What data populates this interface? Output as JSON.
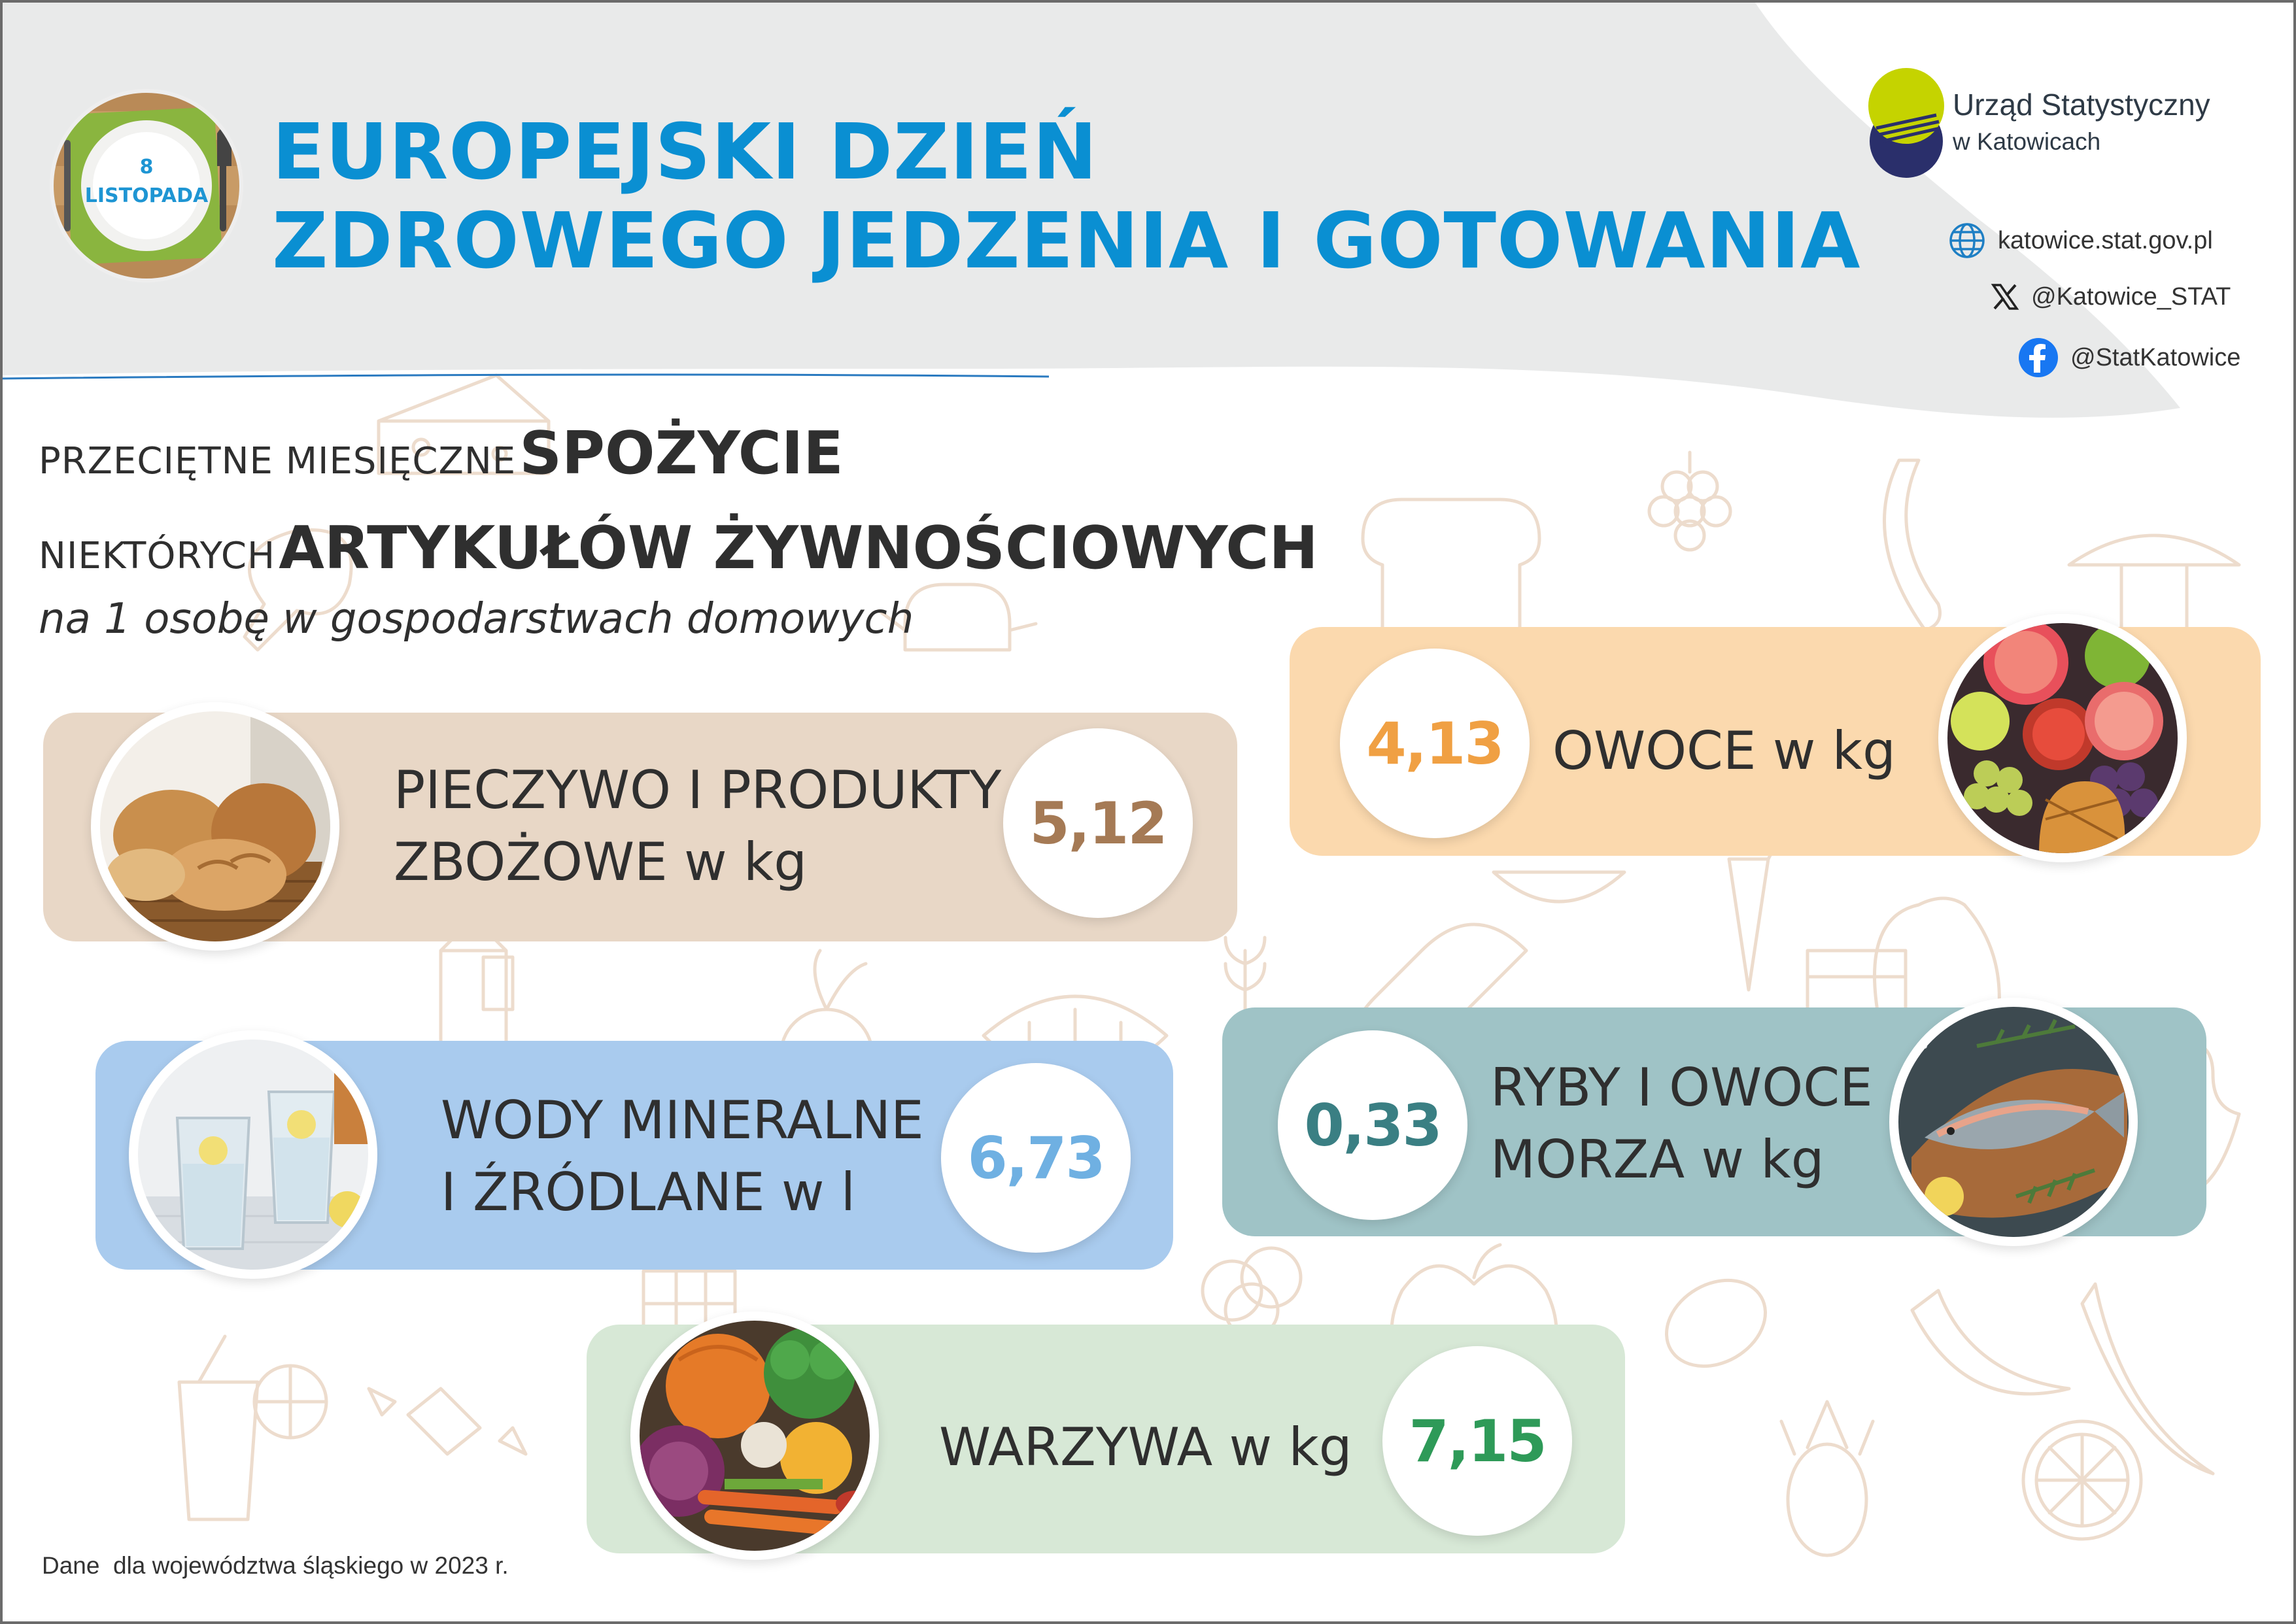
{
  "date_badge": {
    "day": "8",
    "month": "LISTOPADA"
  },
  "title": {
    "line1": "EUROPEJSKI DZIEŃ",
    "line2": "ZDROWEGO JEDZENIA I GOTOWANIA"
  },
  "organization": {
    "name": "Urząd Statystyczny",
    "sub": "w Katowicach",
    "website": "katowice.stat.gov.pl",
    "x_handle": "@Katowice_STAT",
    "facebook": "@StatKatowice"
  },
  "subtitle": {
    "line1_light": "PRZECIĘTNE MIESIĘCZNE",
    "line1_bold": "SPOŻYCIE",
    "line2_light": "NIEKTÓRYCH",
    "line2_bold": "ARTYKUŁÓW ŻYWNOŚCIOWYCH",
    "line3": "na 1 osobę w gospodarstwach domowych"
  },
  "items": {
    "bread": {
      "label_line1": "PIECZYWO I PRODUKTY",
      "label_line2": "ZBOŻOWE w kg",
      "value": "5,12",
      "color": "#a57a55",
      "bg": "#e8d7c6"
    },
    "fruit": {
      "label_line1": "OWOCE w kg",
      "value": "4,13",
      "color": "#f0a043",
      "bg": "#fbd9ae"
    },
    "water": {
      "label_line1": "WODY MINERALNE",
      "label_line2": "I ŹRÓDLANE w l",
      "value": "6,73",
      "color": "#6fb0e2",
      "bg": "#a9cbee"
    },
    "fish": {
      "label_line1": "RYBY I OWOCE",
      "label_line2": "MORZA w kg",
      "value": "0,33",
      "color": "#3a7f83",
      "bg": "#9fc3c6"
    },
    "vegetables": {
      "label_line1": "WARZYWA w kg",
      "value": "7,15",
      "color": "#2e9a58",
      "bg": "#d7e8d6"
    }
  },
  "footnote": "Dane  dla województwa śląskiego w 2023 r.",
  "colors": {
    "title": "#0a8fd2",
    "header_bg": "#e9eaea",
    "logo_green": "#c5d300",
    "logo_navy": "#2a2f6b"
  }
}
